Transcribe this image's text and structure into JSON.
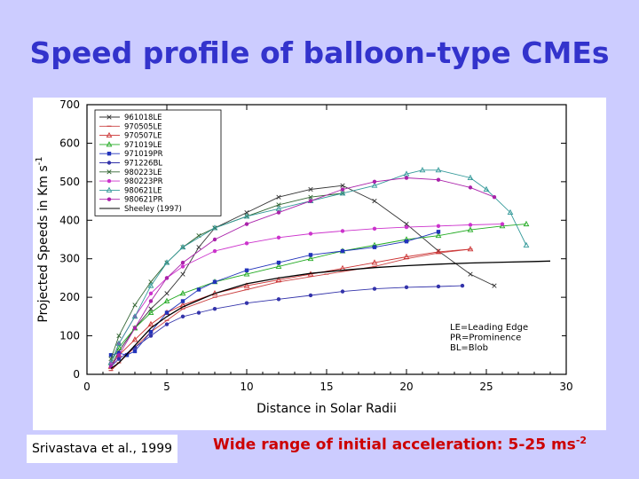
{
  "slide": {
    "title": "Speed profile of balloon-type CMEs",
    "citation": "Srivastava et al., 1999",
    "note_main": "Wide range of initial acceleration: 5-25 ms",
    "note_exponent": "-2"
  },
  "chart_data": {
    "type": "line",
    "title": "",
    "xlabel": "Distance in Solar Radii",
    "ylabel": "Projected Speeds in Km s",
    "ylabel_exponent": "-1",
    "xlim": [
      0,
      30
    ],
    "ylim": [
      0,
      700
    ],
    "xticks": [
      0,
      5,
      10,
      15,
      20,
      25,
      30
    ],
    "yticks": [
      0,
      100,
      200,
      300,
      400,
      500,
      600,
      700
    ],
    "grid": false,
    "legend_position": "top-left",
    "annotation_lines": [
      "LE=Leading Edge",
      "PR=Prominence",
      "BL=Blob"
    ],
    "series": [
      {
        "name": "961018LE",
        "color": "#333333",
        "marker": "x",
        "x": [
          1.5,
          2,
          3,
          4,
          5,
          6,
          7,
          8,
          10,
          12,
          14,
          16,
          18,
          20,
          22,
          24,
          25.5
        ],
        "y": [
          20,
          60,
          120,
          170,
          210,
          260,
          330,
          380,
          420,
          460,
          480,
          490,
          450,
          390,
          320,
          260,
          230
        ]
      },
      {
        "name": "970505LE",
        "color": "#cc4444",
        "marker": "dash",
        "x": [
          1.5,
          2,
          3,
          4,
          5,
          6,
          8,
          10,
          12,
          15,
          18,
          20,
          22,
          24
        ],
        "y": [
          10,
          30,
          70,
          110,
          140,
          170,
          200,
          220,
          240,
          260,
          280,
          300,
          315,
          325
        ]
      },
      {
        "name": "970507LE",
        "color": "#cc3333",
        "marker": "triangle",
        "x": [
          1.5,
          2,
          3,
          4,
          5,
          6,
          8,
          10,
          12,
          14,
          16,
          18,
          20,
          22,
          24
        ],
        "y": [
          20,
          50,
          90,
          130,
          160,
          180,
          210,
          230,
          245,
          260,
          275,
          290,
          305,
          318,
          325
        ]
      },
      {
        "name": "971019LE",
        "color": "#22aa22",
        "marker": "triangle",
        "x": [
          1.5,
          2,
          3,
          4,
          5,
          6,
          8,
          10,
          12,
          14,
          16,
          18,
          20,
          22,
          24,
          26,
          27.5
        ],
        "y": [
          30,
          70,
          120,
          160,
          190,
          210,
          240,
          260,
          280,
          300,
          320,
          335,
          350,
          360,
          375,
          385,
          390
        ]
      },
      {
        "name": "971019PR",
        "color": "#2233bb",
        "marker": "square",
        "x": [
          1.5,
          2,
          2.5,
          3,
          4,
          5,
          6,
          7,
          8,
          10,
          12,
          14,
          16,
          18,
          20,
          22
        ],
        "y": [
          50,
          55,
          50,
          60,
          110,
          160,
          190,
          220,
          240,
          270,
          290,
          310,
          320,
          330,
          345,
          370
        ]
      },
      {
        "name": "971226BL",
        "color": "#3333aa",
        "marker": "circle",
        "x": [
          1.5,
          2,
          3,
          4,
          5,
          6,
          7,
          8,
          10,
          12,
          14,
          16,
          18,
          20,
          22,
          23.5
        ],
        "y": [
          20,
          40,
          70,
          100,
          130,
          150,
          160,
          170,
          185,
          195,
          205,
          215,
          222,
          226,
          228,
          230
        ]
      },
      {
        "name": "980223LE",
        "color": "#336633",
        "marker": "x",
        "x": [
          1.5,
          2,
          3,
          4,
          5,
          6,
          7,
          8,
          10,
          12,
          14,
          16
        ],
        "y": [
          40,
          100,
          180,
          240,
          290,
          330,
          360,
          380,
          410,
          440,
          460,
          470
        ]
      },
      {
        "name": "980223PR",
        "color": "#cc33cc",
        "marker": "circle",
        "x": [
          1.5,
          2,
          3,
          4,
          5,
          6,
          8,
          10,
          12,
          14,
          16,
          18,
          20,
          22,
          24,
          26
        ],
        "y": [
          30,
          80,
          150,
          210,
          250,
          280,
          320,
          340,
          355,
          365,
          372,
          378,
          382,
          385,
          388,
          390
        ]
      },
      {
        "name": "980621LE",
        "color": "#339999",
        "marker": "triangle",
        "x": [
          1.5,
          2,
          3,
          4,
          5,
          6,
          8,
          10,
          12,
          14,
          16,
          18,
          20,
          21,
          22,
          24,
          25,
          26.5,
          27.5
        ],
        "y": [
          30,
          80,
          150,
          230,
          290,
          330,
          380,
          410,
          430,
          450,
          470,
          490,
          520,
          530,
          530,
          510,
          480,
          420,
          335
        ]
      },
      {
        "name": "980621PR",
        "color": "#aa22aa",
        "marker": "circle",
        "x": [
          1.5,
          2,
          3,
          4,
          5,
          6,
          8,
          10,
          12,
          14,
          16,
          18,
          20,
          22,
          24,
          25.5
        ],
        "y": [
          20,
          50,
          120,
          190,
          250,
          290,
          350,
          390,
          420,
          450,
          480,
          500,
          510,
          505,
          485,
          460
        ]
      },
      {
        "name": "Sheeley (1997)",
        "color": "#000000",
        "marker": "none",
        "x": [
          1.5,
          2,
          3,
          4,
          5,
          6,
          8,
          10,
          12,
          14,
          16,
          18,
          20,
          22,
          24,
          26,
          28,
          29
        ],
        "y": [
          15,
          30,
          75,
          120,
          150,
          175,
          210,
          235,
          250,
          262,
          270,
          277,
          282,
          286,
          289,
          291,
          293,
          294
        ]
      }
    ]
  }
}
